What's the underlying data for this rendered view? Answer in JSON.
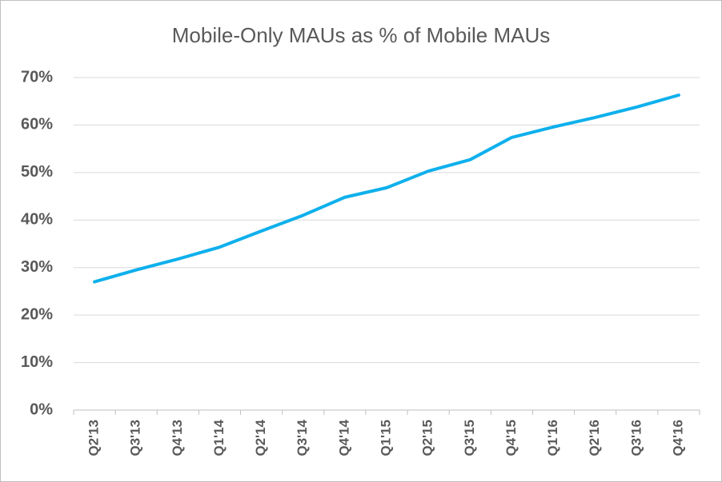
{
  "chart_data": {
    "type": "line",
    "title": "Mobile-Only MAUs as % of Mobile MAUs",
    "categories": [
      "Q2'13",
      "Q3'13",
      "Q4'13",
      "Q1'14",
      "Q2'14",
      "Q3'14",
      "Q4'14",
      "Q1'15",
      "Q2'15",
      "Q3'15",
      "Q4'15",
      "Q1'16",
      "Q2'16",
      "Q3'16",
      "Q4'16"
    ],
    "series": [
      {
        "color": "#0fb0ec",
        "values": [
          27,
          29.5,
          31.8,
          34.3,
          37.7,
          41,
          44.8,
          46.8,
          50.3,
          52.7,
          57.4,
          59.6,
          61.6,
          63.8,
          66.3
        ]
      }
    ],
    "ylim": [
      0,
      70
    ],
    "yticks": [
      {
        "value": 0,
        "label": "0%"
      },
      {
        "value": 10,
        "label": "10%"
      },
      {
        "value": 20,
        "label": "20%"
      },
      {
        "value": 30,
        "label": "30%"
      },
      {
        "value": 40,
        "label": "40%"
      },
      {
        "value": 50,
        "label": "50%"
      },
      {
        "value": 60,
        "label": "60%"
      },
      {
        "value": 70,
        "label": "70%"
      }
    ],
    "grid": true
  }
}
